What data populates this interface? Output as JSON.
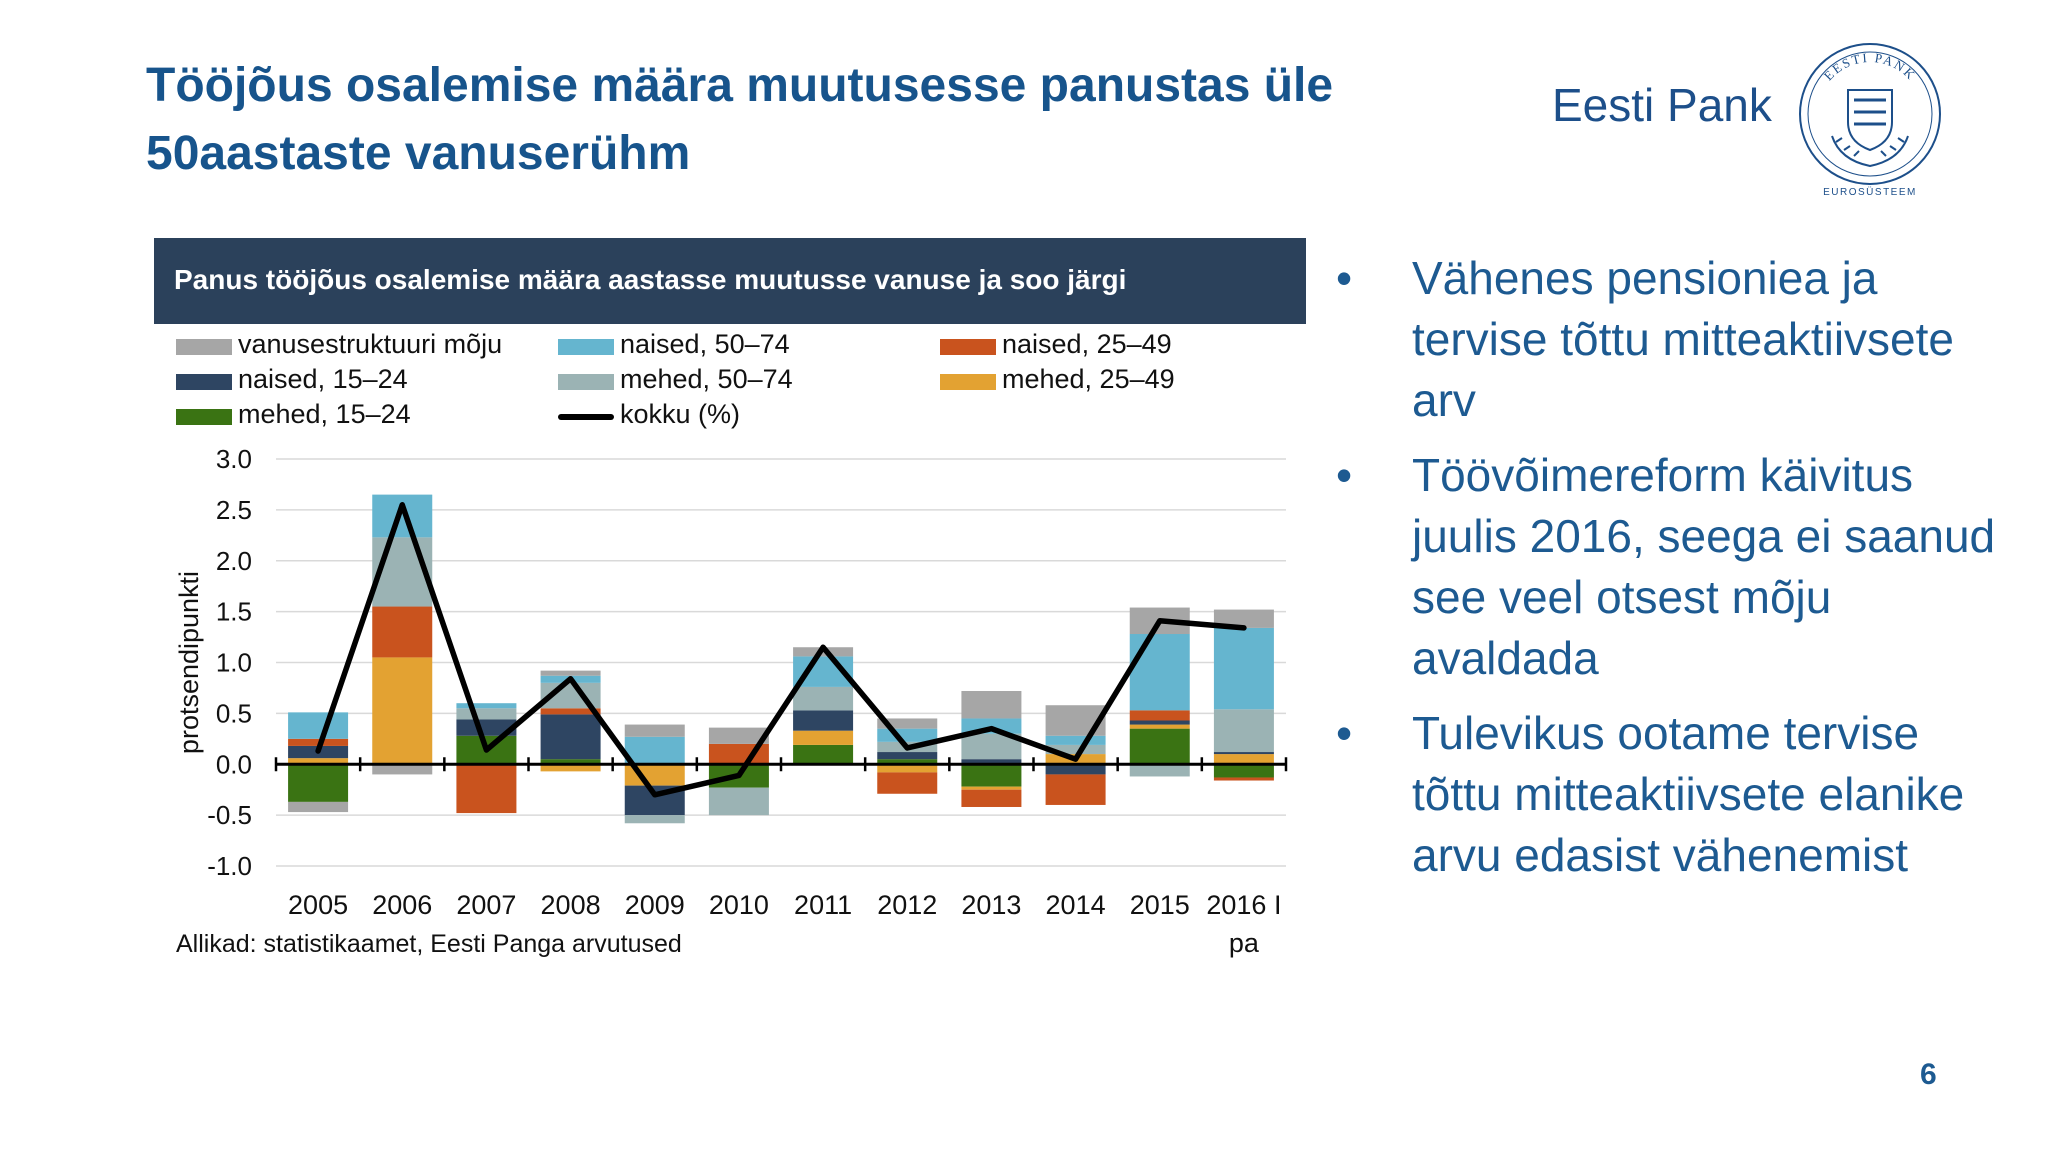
{
  "slide": {
    "title": "Tööjõus osalemise määra muutusesse panustas üle 50aastaste vanuserühm",
    "brand": "Eesti Pank",
    "seal_text_top": "EESTI PANK",
    "seal_text_bottom": "EUROSÜSTEEM",
    "page_number": "6"
  },
  "bullets": [
    "Vähenes pensioniea ja tervise tõttu mitteaktiivsete arv",
    "Töövõimereform käivitus juulis 2016, seega ei saanud see veel otsest mõju avaldada",
    "Tulevikus ootame tervise tõttu mitteaktiivsete elanike arvu edasist vähenemist"
  ],
  "bullet_symbol": "•",
  "colors": {
    "title": "#17548c",
    "header_bg": "#2b415b",
    "text_blue": "#1d5a91"
  },
  "chart_data": {
    "type": "bar",
    "stacked": true,
    "title": "Panus tööjõus osalemise määra aastasse muutusse vanuse ja soo järgi",
    "ylabel": "protsendipunkti",
    "xlabel": "",
    "ylim": [
      -1.0,
      3.0
    ],
    "yticks": [
      "3.0",
      "2.5",
      "2.0",
      "1.5",
      "1.0",
      "0.5",
      "0.0",
      "-0.5",
      "-1.0"
    ],
    "ytick_values": [
      3.0,
      2.5,
      2.0,
      1.5,
      1.0,
      0.5,
      0.0,
      -0.5,
      -1.0
    ],
    "grid": true,
    "legend_position": "top",
    "categories": [
      "2005",
      "2006",
      "2007",
      "2008",
      "2009",
      "2010",
      "2011",
      "2012",
      "2013",
      "2014",
      "2015",
      "2016 I pa"
    ],
    "category_labels": [
      [
        "2005"
      ],
      [
        "2006"
      ],
      [
        "2007"
      ],
      [
        "2008"
      ],
      [
        "2009"
      ],
      [
        "2010"
      ],
      [
        "2011"
      ],
      [
        "2012"
      ],
      [
        "2013"
      ],
      [
        "2014"
      ],
      [
        "2015"
      ],
      [
        "2016 I",
        "pa"
      ]
    ],
    "source": "Allikad: statistikaamet, Eesti Panga arvutused",
    "series": [
      {
        "name": "mehed, 15–24",
        "color": "#3a7313",
        "values": [
          -0.37,
          0.0,
          0.28,
          0.05,
          0.0,
          -0.23,
          0.19,
          0.05,
          -0.22,
          0.0,
          0.35,
          -0.13
        ]
      },
      {
        "name": "mehed, 25–49",
        "color": "#e3a232",
        "values": [
          0.06,
          1.05,
          0.0,
          -0.07,
          -0.21,
          0.0,
          0.14,
          -0.08,
          -0.03,
          0.1,
          0.04,
          0.1
        ]
      },
      {
        "name": "naised, 15–24",
        "color": "#2e4562",
        "values": [
          0.12,
          0.0,
          0.16,
          0.44,
          -0.29,
          0.0,
          0.2,
          0.07,
          0.05,
          -0.1,
          0.04,
          0.02
        ]
      },
      {
        "name": "naised, 25–49",
        "color": "#c9531e",
        "values": [
          0.07,
          0.5,
          -0.48,
          0.06,
          0.0,
          0.2,
          0.0,
          -0.21,
          -0.17,
          -0.3,
          0.1,
          -0.03
        ]
      },
      {
        "name": "mehed, 50–74",
        "color": "#9bb3b4",
        "values": [
          0.0,
          0.68,
          0.11,
          0.25,
          -0.08,
          -0.27,
          0.23,
          0.1,
          0.25,
          0.09,
          -0.12,
          0.42
        ]
      },
      {
        "name": "naised, 50–74",
        "color": "#65b5cf",
        "values": [
          0.26,
          0.42,
          0.05,
          0.07,
          0.27,
          0.0,
          0.3,
          0.13,
          0.15,
          0.09,
          0.75,
          0.8
        ]
      },
      {
        "name": "vanusestruktuuri mõju",
        "color": "#a6a6a6",
        "values": [
          -0.1,
          -0.1,
          0.0,
          0.05,
          0.12,
          0.16,
          0.09,
          0.1,
          0.27,
          0.3,
          0.26,
          0.18
        ]
      }
    ],
    "line": {
      "name": "kokku (%)",
      "color": "#000000",
      "values": [
        0.13,
        2.55,
        0.14,
        0.84,
        -0.3,
        -0.11,
        1.15,
        0.16,
        0.35,
        0.05,
        1.41,
        1.34
      ]
    },
    "legend_order": [
      "vanusestruktuuri mõju",
      "naised, 50–74",
      "naised, 25–49",
      "naised, 15–24",
      "mehed, 50–74",
      "mehed, 25–49",
      "mehed, 15–24",
      "kokku (%)"
    ]
  }
}
